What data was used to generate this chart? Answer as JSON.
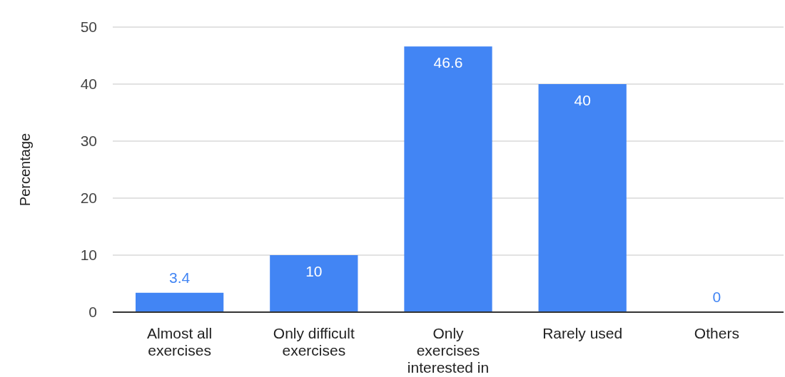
{
  "chart_data": {
    "type": "bar",
    "ylabel": "Percentage",
    "categories": [
      "Almost all exercises",
      "Only difficult exercises",
      "Only exercises interested in",
      "Rarely used",
      "Others"
    ],
    "values": [
      3.4,
      10,
      46.6,
      40,
      0
    ],
    "color": "#4285f4",
    "ylim": [
      0,
      50
    ],
    "yticks": [
      0,
      10,
      20,
      30,
      40,
      50
    ],
    "grid": "y",
    "data_labels": true
  }
}
